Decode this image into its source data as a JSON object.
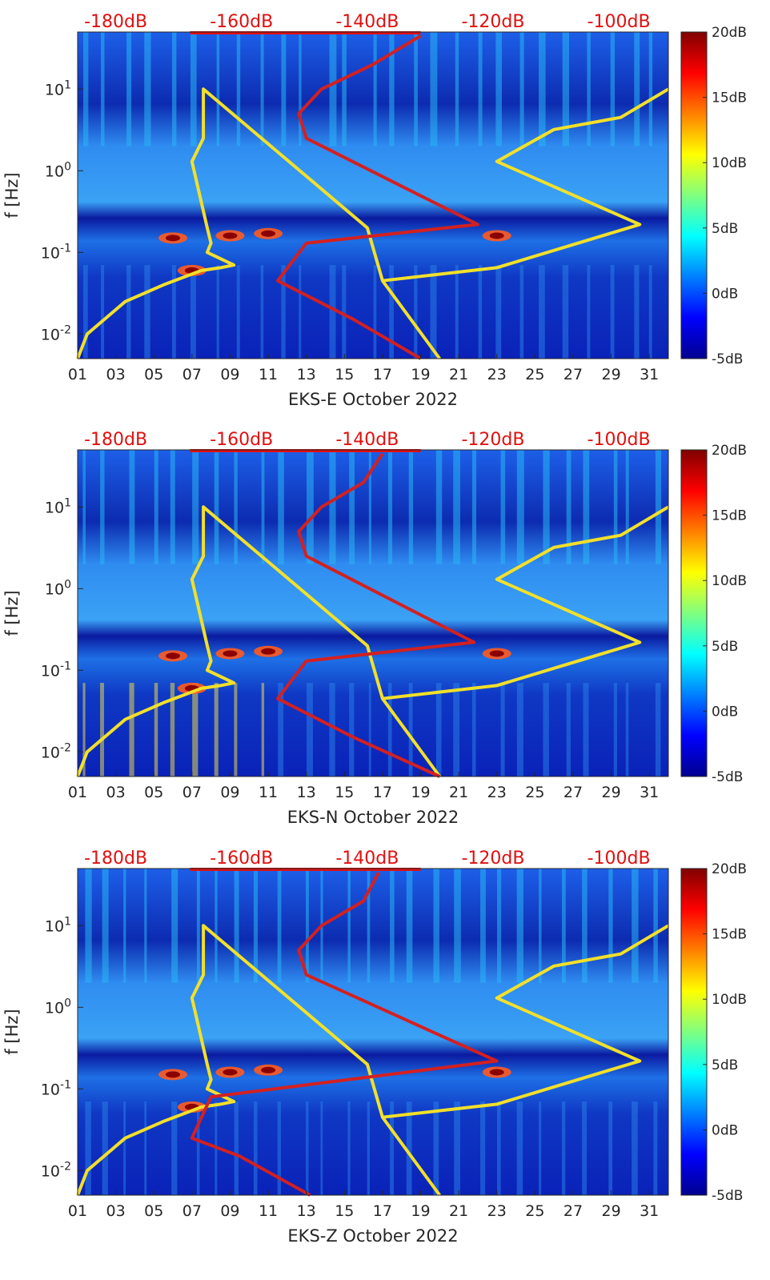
{
  "chart_data": [
    {
      "type": "heatmap",
      "xlabel": "EKS-E October 2022",
      "ylabel": "f [Hz]",
      "x_tick_labels": [
        "01",
        "03",
        "05",
        "07",
        "09",
        "11",
        "13",
        "15",
        "17",
        "19",
        "21",
        "23",
        "25",
        "27",
        "29",
        "31"
      ],
      "y_scale": "log",
      "ylim": [
        0.005,
        50
      ],
      "y_tick_labels": [
        "10^-2",
        "10^-1",
        "10^0",
        "10^1"
      ],
      "top_axis_labels": [
        "-180dB",
        "-160dB",
        "-140dB",
        "-120dB",
        "-100dB"
      ],
      "colorbar": {
        "min": -5,
        "max": 20,
        "tick_labels": [
          "20dB",
          "15dB",
          "10dB",
          "5dB",
          "0dB",
          "-5dB"
        ]
      },
      "colormap": "jet",
      "series": [
        {
          "color": "#f2e02a",
          "x": [
            1.0,
            1.5,
            3.5,
            5.5,
            7.5,
            8.5,
            9.2,
            7.8,
            8.0,
            7.8,
            7.0,
            7.6,
            7.6,
            7.6,
            16.2,
            17.0,
            20.0
          ],
          "y": [
            0.005,
            0.01,
            0.025,
            0.04,
            0.06,
            0.065,
            0.07,
            0.1,
            0.13,
            0.2,
            1.3,
            2.5,
            5.0,
            10.0,
            0.2,
            0.045,
            0.005
          ]
        },
        {
          "color": "#f2e02a",
          "x": [
            17.0,
            23.0,
            30.5,
            23.0,
            26.0,
            29.5,
            32.0
          ],
          "y": [
            0.045,
            0.065,
            0.22,
            1.3,
            3.2,
            4.5,
            10.0
          ]
        },
        {
          "color": "#d42020",
          "x": [
            19.0,
            15.5,
            11.5,
            13.0,
            22.0,
            13.0,
            12.6,
            13.8,
            16.5,
            19.0
          ],
          "y": [
            0.005,
            0.015,
            0.045,
            0.13,
            0.22,
            2.5,
            5.0,
            10.0,
            20.0,
            45.0
          ]
        }
      ]
    },
    {
      "type": "heatmap",
      "xlabel": "EKS-N October 2022",
      "ylabel": "f [Hz]",
      "x_tick_labels": [
        "01",
        "03",
        "05",
        "07",
        "09",
        "11",
        "13",
        "15",
        "17",
        "19",
        "21",
        "23",
        "25",
        "27",
        "29",
        "31"
      ],
      "y_scale": "log",
      "ylim": [
        0.005,
        50
      ],
      "y_tick_labels": [
        "10^-2",
        "10^-1",
        "10^0",
        "10^1"
      ],
      "top_axis_labels": [
        "-180dB",
        "-160dB",
        "-140dB",
        "-120dB",
        "-100dB"
      ],
      "colorbar": {
        "min": -5,
        "max": 20,
        "tick_labels": [
          "20dB",
          "15dB",
          "10dB",
          "5dB",
          "0dB",
          "-5dB"
        ]
      },
      "colormap": "jet",
      "series": [
        {
          "color": "#f2e02a",
          "x": [
            1.0,
            1.5,
            3.5,
            5.5,
            7.5,
            8.5,
            9.2,
            7.8,
            8.0,
            7.8,
            7.0,
            7.6,
            7.6,
            7.6,
            16.2,
            17.0,
            20.0
          ],
          "y": [
            0.005,
            0.01,
            0.025,
            0.04,
            0.06,
            0.065,
            0.07,
            0.1,
            0.13,
            0.2,
            1.3,
            2.5,
            5.0,
            10.0,
            0.2,
            0.045,
            0.005
          ]
        },
        {
          "color": "#f2e02a",
          "x": [
            17.0,
            23.0,
            30.5,
            23.0,
            26.0,
            29.5,
            32.0
          ],
          "y": [
            0.045,
            0.065,
            0.22,
            1.3,
            3.2,
            4.5,
            10.0
          ]
        },
        {
          "color": "#d42020",
          "x": [
            20.0,
            15.5,
            11.5,
            13.0,
            21.8,
            13.0,
            12.6,
            13.8,
            16.0,
            17.0
          ],
          "y": [
            0.005,
            0.015,
            0.045,
            0.13,
            0.22,
            2.5,
            5.0,
            10.0,
            20.0,
            45.0
          ]
        }
      ]
    },
    {
      "type": "heatmap",
      "xlabel": "EKS-Z October 2022",
      "ylabel": "f [Hz]",
      "x_tick_labels": [
        "01",
        "03",
        "05",
        "07",
        "09",
        "11",
        "13",
        "15",
        "17",
        "19",
        "21",
        "23",
        "25",
        "27",
        "29",
        "31"
      ],
      "y_scale": "log",
      "ylim": [
        0.005,
        50
      ],
      "y_tick_labels": [
        "10^-2",
        "10^-1",
        "10^0",
        "10^1"
      ],
      "top_axis_labels": [
        "-180dB",
        "-160dB",
        "-140dB",
        "-120dB",
        "-100dB"
      ],
      "colorbar": {
        "min": -5,
        "max": 20,
        "tick_labels": [
          "20dB",
          "15dB",
          "10dB",
          "5dB",
          "0dB",
          "-5dB"
        ]
      },
      "colormap": "jet",
      "series": [
        {
          "color": "#f2e02a",
          "x": [
            1.0,
            1.5,
            3.5,
            5.5,
            7.5,
            8.5,
            9.2,
            7.8,
            8.0,
            7.8,
            7.0,
            7.6,
            7.6,
            7.6,
            16.2,
            17.0,
            20.0
          ],
          "y": [
            0.005,
            0.01,
            0.025,
            0.04,
            0.06,
            0.065,
            0.07,
            0.1,
            0.13,
            0.2,
            1.3,
            2.5,
            5.0,
            10.0,
            0.2,
            0.045,
            0.005
          ]
        },
        {
          "color": "#f2e02a",
          "x": [
            17.0,
            23.0,
            30.5,
            23.0,
            26.0,
            29.5,
            32.0
          ],
          "y": [
            0.045,
            0.065,
            0.22,
            1.3,
            3.2,
            4.5,
            10.0
          ]
        },
        {
          "color": "#d42020",
          "x": [
            13.2,
            9.5,
            7.0,
            8.0,
            23.0,
            13.0,
            12.6,
            13.8,
            16.0,
            16.8
          ],
          "y": [
            0.005,
            0.015,
            0.025,
            0.08,
            0.22,
            2.5,
            5.0,
            10.0,
            20.0,
            45.0
          ]
        }
      ]
    }
  ]
}
